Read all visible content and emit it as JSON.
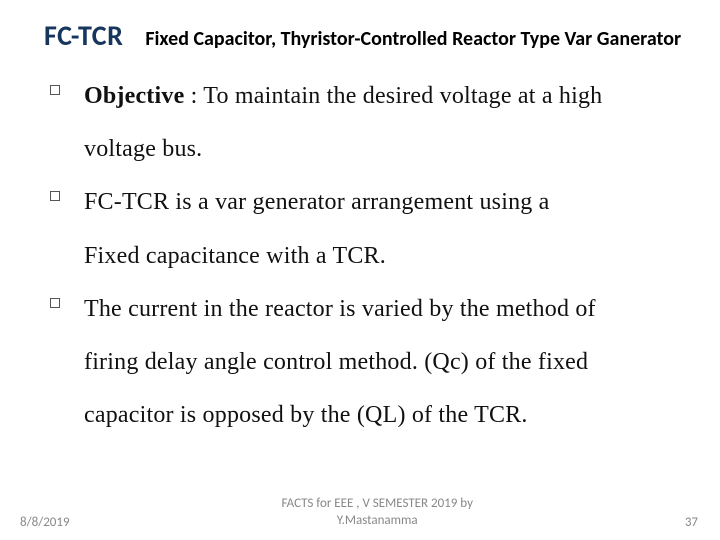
{
  "header": {
    "main": "FC-TCR",
    "subtitle": "Fixed Capacitor, Thyristor-Controlled Reactor Type Var Ganerator"
  },
  "bullets": [
    {
      "lead": "Objective",
      "rest": " : To maintain the desired voltage at a high",
      "cont": "voltage bus."
    },
    {
      "text": "FC-TCR is a var generator arrangement using a",
      "cont": "Fixed capacitance with a TCR."
    },
    {
      "text": "The current in the reactor is varied by the method of",
      "cont1": "firing delay angle control method. (Qc) of the fixed",
      "cont2": "capacitor is opposed by the (QL) of the TCR."
    }
  ],
  "footer": {
    "date": "8/8/2019",
    "center_line1": "FACTS for EEE , V SEMESTER 2019 by",
    "center_line2": "Y.Mastanamma",
    "page": "37"
  },
  "colors": {
    "title": "#17365d",
    "text": "#111111",
    "footer": "#888888",
    "bg": "#ffffff"
  },
  "fonts": {
    "title_size_pt": 21,
    "subtitle_size_pt": 15,
    "body_size_pt": 18,
    "footer_size_pt": 10
  }
}
